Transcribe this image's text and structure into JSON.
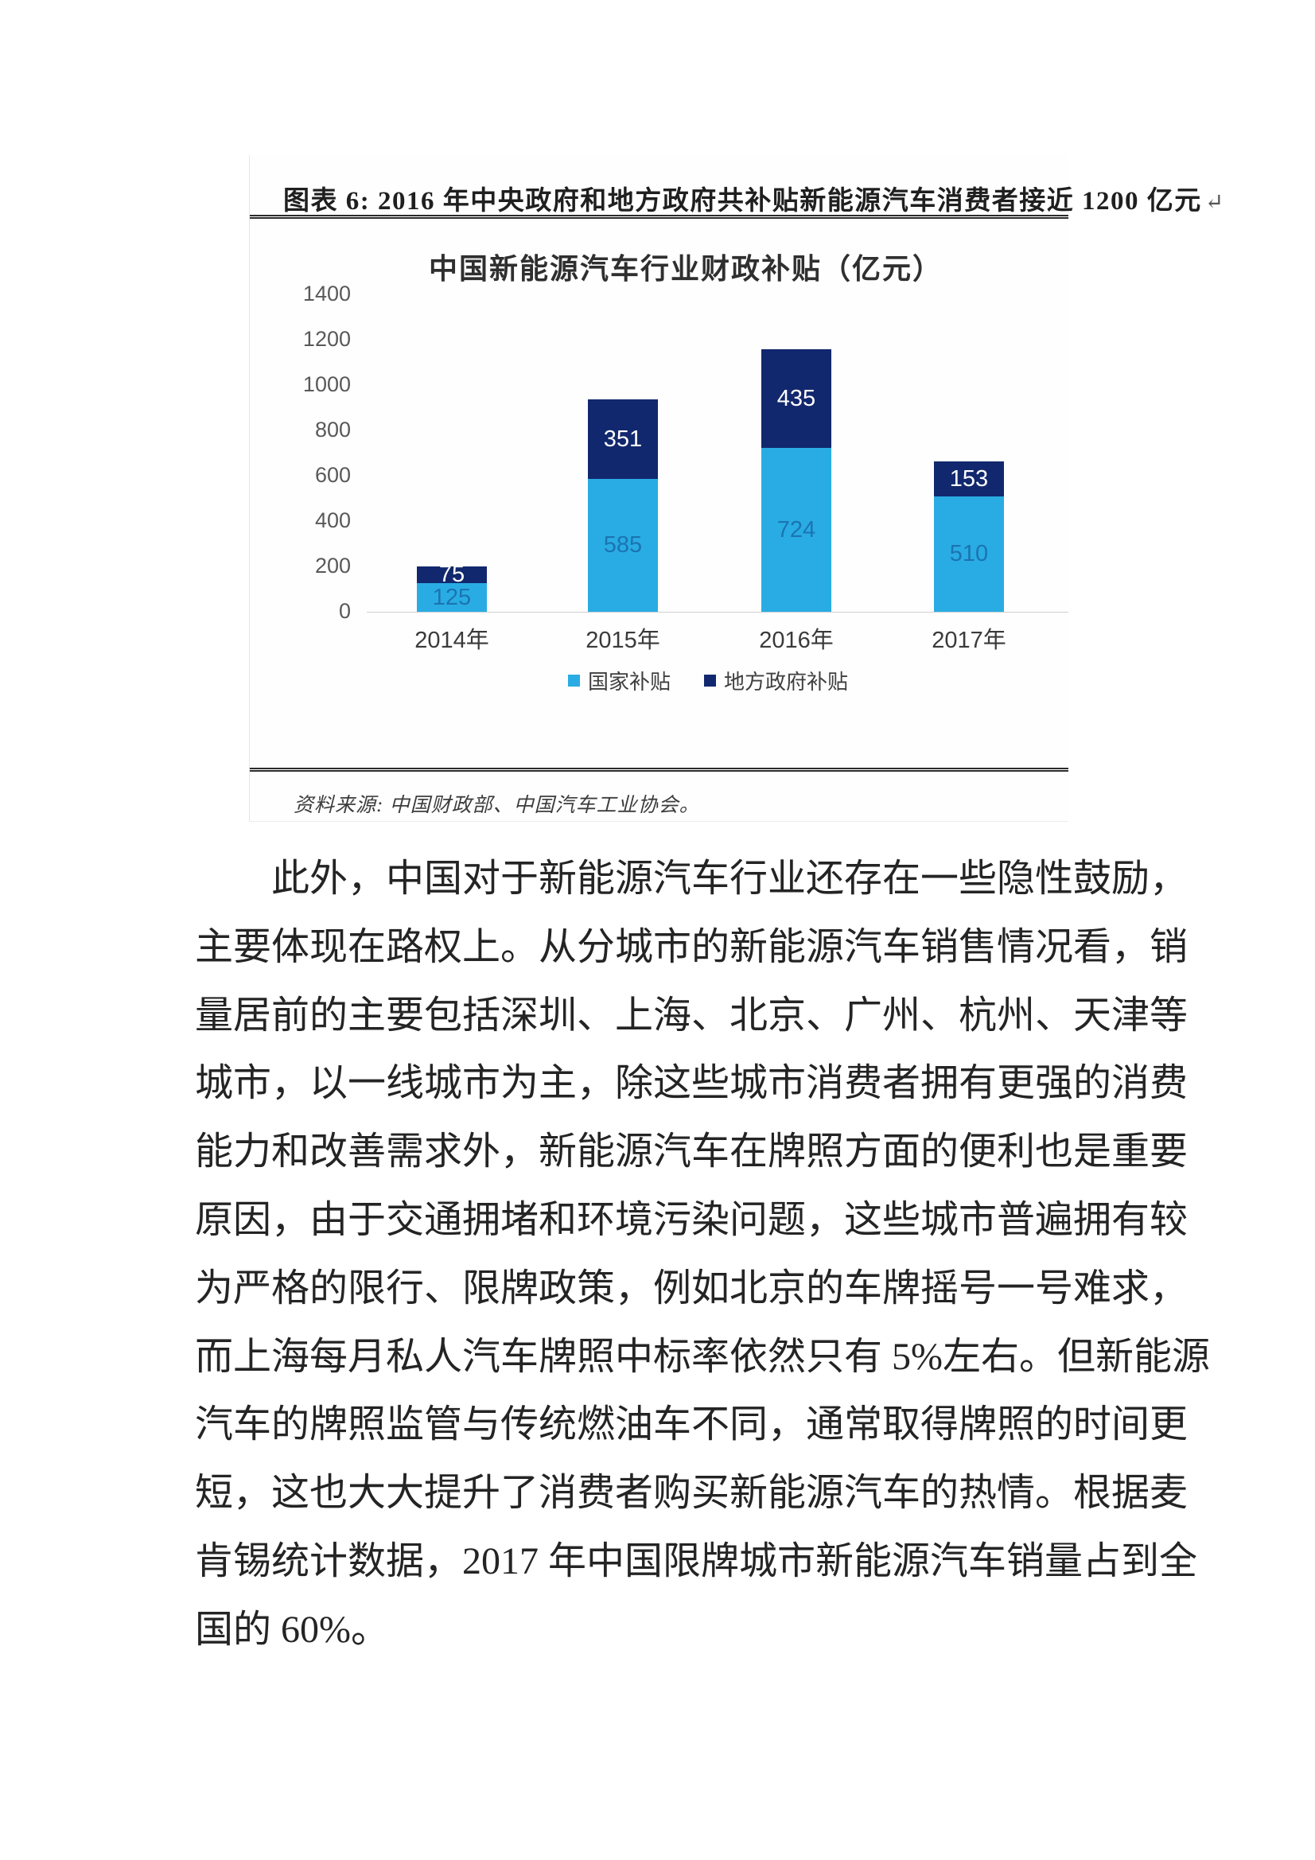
{
  "figure": {
    "header": "图表 6: 2016 年中央政府和地方政府共补贴新能源汽车消费者接近 1200 亿元",
    "return_mark": "↵",
    "source": "资料来源: 中国财政部、中国汽车工业协会。"
  },
  "chart_data": {
    "type": "bar",
    "stacked": true,
    "title": "中国新能源汽车行业财政补贴（亿元）",
    "categories": [
      "2014年",
      "2015年",
      "2016年",
      "2017年"
    ],
    "series": [
      {
        "name": "国家补贴",
        "color": "#29ACE3",
        "label_color": "#1B74B2",
        "values": [
          125,
          585,
          724,
          510
        ]
      },
      {
        "name": "地方政府补贴",
        "color": "#12286E",
        "label_color": "#FFFFFF",
        "values": [
          75,
          351,
          435,
          153
        ]
      }
    ],
    "totals": [
      200,
      936,
      1159,
      663
    ],
    "xlabel": "",
    "ylabel": "",
    "ylim": [
      0,
      1400
    ],
    "yticks": [
      0,
      200,
      400,
      600,
      800,
      1000,
      1200,
      1400
    ],
    "grid": false,
    "legend_position": "bottom"
  },
  "paragraph": {
    "lines": [
      "此外，中国对于新能源汽车行业还存在一些隐性鼓励，",
      "主要体现在路权上。从分城市的新能源汽车销售情况看，销",
      "量居前的主要包括深圳、上海、北京、广州、杭州、天津等",
      "城市，以一线城市为主，除这些城市消费者拥有更强的消费",
      "能力和改善需求外，新能源汽车在牌照方面的便利也是重要",
      "原因，由于交通拥堵和环境污染问题，这些城市普遍拥有较",
      "为严格的限行、限牌政策，例如北京的车牌摇号一号难求，",
      "而上海每月私人汽车牌照中标率依然只有 5%左右。但新能源",
      "汽车的牌照监管与传统燃油车不同，通常取得牌照的时间更",
      "短，这也大大提升了消费者购买新能源汽车的热情。根据麦",
      "肯锡统计数据，2017 年中国限牌城市新能源汽车销量占到全",
      "国的 60%。"
    ]
  }
}
